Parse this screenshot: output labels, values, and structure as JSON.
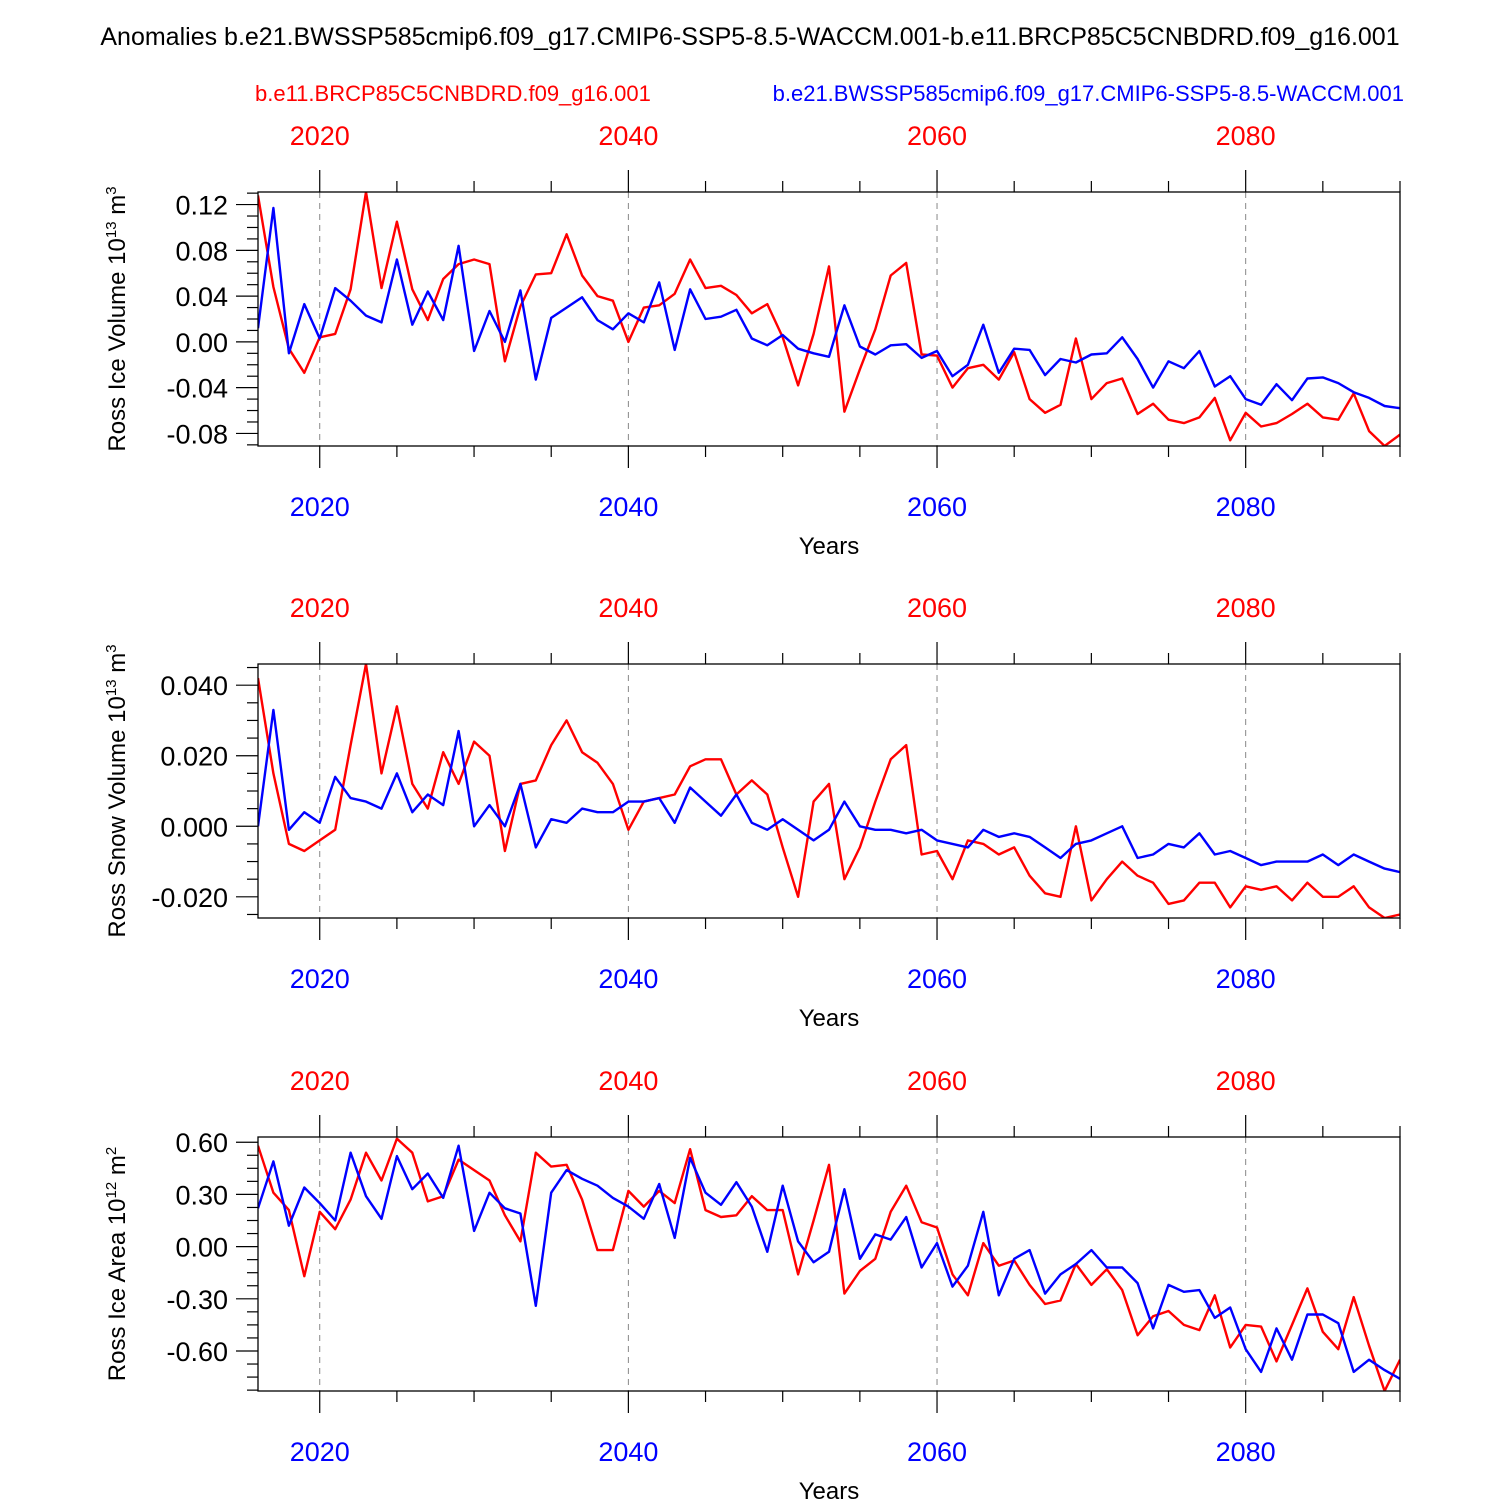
{
  "title": "Anomalies b.e21.BWSSP585cmip6.f09_g17.CMIP6-SSP5-8.5-WACCM.001-b.e11.BRCP85C5CNBDRD.f09_g16.001",
  "legend": {
    "red_label": "b.e11.BRCP85C5CNBDRD.f09_g16.001",
    "blue_label": "b.e21.BWSSP585cmip6.f09_g17.CMIP6-SSP5-8.5-WACCM.001",
    "red_color": "#ff0000",
    "blue_color": "#0000ff"
  },
  "chart_data": [
    {
      "type": "line",
      "ylabel": "Ross Ice Volume",
      "ylabel_power": "13",
      "ylabel_unit": "m",
      "ylabel_unit_power": "3",
      "xlabel": "Years",
      "xlim": [
        2016,
        2090
      ],
      "ylim": [
        -0.091,
        0.131
      ],
      "yticks": [
        -0.08,
        -0.04,
        0.0,
        0.04,
        0.08,
        0.12
      ],
      "ytick_labels": [
        "-0.08",
        "-0.04",
        "0.00",
        "0.04",
        "0.08",
        "0.12"
      ],
      "xticks": [
        2020,
        2040,
        2060,
        2080
      ],
      "xtick_labels": [
        "2020",
        "2040",
        "2060",
        "2080"
      ],
      "x_start": 2016,
      "series": [
        {
          "name": "b.e11.BRCP85C5CNBDRD.f09_g16.001",
          "color": "#ff0000",
          "values": [
            0.128,
            0.048,
            -0.006,
            -0.027,
            0.004,
            0.007,
            0.046,
            0.131,
            0.047,
            0.105,
            0.046,
            0.019,
            0.055,
            0.068,
            0.072,
            0.068,
            -0.017,
            0.031,
            0.059,
            0.06,
            0.094,
            0.058,
            0.04,
            0.036,
            0.0,
            0.03,
            0.032,
            0.042,
            0.072,
            0.047,
            0.049,
            0.041,
            0.025,
            0.033,
            0.004,
            -0.038,
            0.007,
            0.066,
            -0.061,
            -0.024,
            0.011,
            0.058,
            0.069,
            -0.011,
            -0.012,
            -0.04,
            -0.023,
            -0.02,
            -0.033,
            -0.009,
            -0.05,
            -0.062,
            -0.055,
            0.003,
            -0.05,
            -0.036,
            -0.032,
            -0.063,
            -0.054,
            -0.068,
            -0.071,
            -0.066,
            -0.049,
            -0.086,
            -0.062,
            -0.074,
            -0.071,
            -0.063,
            -0.054,
            -0.066,
            -0.068,
            -0.045,
            -0.078,
            -0.091,
            -0.081
          ]
        },
        {
          "name": "b.e21.BWSSP585cmip6.f09_g17.CMIP6-SSP5-8.5-WACCM.001",
          "color": "#0000ff",
          "values": [
            0.012,
            0.117,
            -0.01,
            0.033,
            0.003,
            0.047,
            0.036,
            0.023,
            0.017,
            0.072,
            0.015,
            0.044,
            0.019,
            0.084,
            -0.008,
            0.027,
            0.0,
            0.045,
            -0.033,
            0.021,
            0.03,
            0.039,
            0.019,
            0.011,
            0.025,
            0.017,
            0.052,
            -0.007,
            0.046,
            0.02,
            0.022,
            0.028,
            0.003,
            -0.003,
            0.006,
            -0.006,
            -0.01,
            -0.013,
            0.032,
            -0.004,
            -0.011,
            -0.003,
            -0.002,
            -0.014,
            -0.008,
            -0.03,
            -0.02,
            0.015,
            -0.027,
            -0.006,
            -0.007,
            -0.029,
            -0.015,
            -0.018,
            -0.011,
            -0.01,
            0.004,
            -0.015,
            -0.04,
            -0.017,
            -0.023,
            -0.008,
            -0.039,
            -0.03,
            -0.05,
            -0.055,
            -0.037,
            -0.051,
            -0.032,
            -0.031,
            -0.036,
            -0.044,
            -0.049,
            -0.056,
            -0.058
          ]
        }
      ]
    },
    {
      "type": "line",
      "ylabel": "Ross Snow Volume",
      "ylabel_power": "13",
      "ylabel_unit": "m",
      "ylabel_unit_power": "3",
      "xlabel": "Years",
      "xlim": [
        2016,
        2090
      ],
      "ylim": [
        -0.026,
        0.046
      ],
      "yticks": [
        -0.02,
        0.0,
        0.02,
        0.04
      ],
      "ytick_labels": [
        "-0.020",
        "0.000",
        "0.020",
        "0.040"
      ],
      "xticks": [
        2020,
        2040,
        2060,
        2080
      ],
      "xtick_labels": [
        "2020",
        "2040",
        "2060",
        "2080"
      ],
      "x_start": 2016,
      "series": [
        {
          "name": "b.e11.BRCP85C5CNBDRD.f09_g16.001",
          "color": "#ff0000",
          "values": [
            0.042,
            0.015,
            -0.005,
            -0.007,
            -0.004,
            -0.001,
            0.023,
            0.046,
            0.015,
            0.034,
            0.012,
            0.005,
            0.021,
            0.012,
            0.024,
            0.02,
            -0.007,
            0.012,
            0.013,
            0.023,
            0.03,
            0.021,
            0.018,
            0.012,
            -0.001,
            0.007,
            0.008,
            0.009,
            0.017,
            0.019,
            0.019,
            0.009,
            0.013,
            0.009,
            -0.006,
            -0.02,
            0.007,
            0.012,
            -0.015,
            -0.006,
            0.007,
            0.019,
            0.023,
            -0.008,
            -0.007,
            -0.015,
            -0.004,
            -0.005,
            -0.008,
            -0.006,
            -0.014,
            -0.019,
            -0.02,
            0.0,
            -0.021,
            -0.015,
            -0.01,
            -0.014,
            -0.016,
            -0.022,
            -0.021,
            -0.016,
            -0.016,
            -0.023,
            -0.017,
            -0.018,
            -0.017,
            -0.021,
            -0.016,
            -0.02,
            -0.02,
            -0.017,
            -0.023,
            -0.026,
            -0.025
          ]
        },
        {
          "name": "b.e21.BWSSP585cmip6.f09_g17.CMIP6-SSP5-8.5-WACCM.001",
          "color": "#0000ff",
          "values": [
            0.0,
            0.033,
            -0.001,
            0.004,
            0.001,
            0.014,
            0.008,
            0.007,
            0.005,
            0.015,
            0.004,
            0.009,
            0.006,
            0.027,
            0.0,
            0.006,
            0.0,
            0.012,
            -0.006,
            0.002,
            0.001,
            0.005,
            0.004,
            0.004,
            0.007,
            0.007,
            0.008,
            0.001,
            0.011,
            0.007,
            0.003,
            0.009,
            0.001,
            -0.001,
            0.002,
            -0.001,
            -0.004,
            -0.001,
            0.007,
            0.0,
            -0.001,
            -0.001,
            -0.002,
            -0.001,
            -0.004,
            -0.005,
            -0.006,
            -0.001,
            -0.003,
            -0.002,
            -0.003,
            -0.006,
            -0.009,
            -0.005,
            -0.004,
            -0.002,
            0.0,
            -0.009,
            -0.008,
            -0.005,
            -0.006,
            -0.002,
            -0.008,
            -0.007,
            -0.009,
            -0.011,
            -0.01,
            -0.01,
            -0.01,
            -0.008,
            -0.011,
            -0.008,
            -0.01,
            -0.012,
            -0.013
          ]
        }
      ]
    },
    {
      "type": "line",
      "ylabel": "Ross Ice Area",
      "ylabel_power": "12",
      "ylabel_unit": "m",
      "ylabel_unit_power": "2",
      "xlabel": "Years",
      "xlim": [
        2016,
        2090
      ],
      "ylim": [
        -0.83,
        0.63
      ],
      "yticks": [
        -0.6,
        -0.3,
        0.0,
        0.3,
        0.6
      ],
      "ytick_labels": [
        "-0.60",
        "-0.30",
        "0.00",
        "0.30",
        "0.60"
      ],
      "xticks": [
        2020,
        2040,
        2060,
        2080
      ],
      "xtick_labels": [
        "2020",
        "2040",
        "2060",
        "2080"
      ],
      "x_start": 2016,
      "series": [
        {
          "name": "b.e11.BRCP85C5CNBDRD.f09_g16.001",
          "color": "#ff0000",
          "values": [
            0.58,
            0.31,
            0.21,
            -0.17,
            0.2,
            0.1,
            0.27,
            0.54,
            0.38,
            0.62,
            0.54,
            0.26,
            0.29,
            0.5,
            0.44,
            0.38,
            0.18,
            0.03,
            0.54,
            0.46,
            0.47,
            0.27,
            -0.02,
            -0.02,
            0.32,
            0.23,
            0.32,
            0.25,
            0.56,
            0.21,
            0.17,
            0.18,
            0.29,
            0.21,
            0.21,
            -0.16,
            0.15,
            0.47,
            -0.27,
            -0.14,
            -0.07,
            0.2,
            0.35,
            0.14,
            0.11,
            -0.16,
            -0.28,
            0.02,
            -0.11,
            -0.08,
            -0.22,
            -0.33,
            -0.31,
            -0.1,
            -0.22,
            -0.13,
            -0.25,
            -0.51,
            -0.4,
            -0.37,
            -0.45,
            -0.48,
            -0.28,
            -0.58,
            -0.45,
            -0.46,
            -0.66,
            -0.45,
            -0.24,
            -0.49,
            -0.59,
            -0.29,
            -0.57,
            -0.83,
            -0.65
          ]
        },
        {
          "name": "b.e21.BWSSP585cmip6.f09_g17.CMIP6-SSP5-8.5-WACCM.001",
          "color": "#0000ff",
          "values": [
            0.22,
            0.49,
            0.12,
            0.34,
            0.25,
            0.15,
            0.54,
            0.29,
            0.16,
            0.52,
            0.33,
            0.42,
            0.28,
            0.58,
            0.09,
            0.31,
            0.22,
            0.19,
            -0.34,
            0.31,
            0.44,
            0.39,
            0.35,
            0.28,
            0.23,
            0.16,
            0.36,
            0.05,
            0.51,
            0.31,
            0.24,
            0.37,
            0.23,
            -0.03,
            0.35,
            0.03,
            -0.09,
            -0.03,
            0.33,
            -0.07,
            0.07,
            0.04,
            0.17,
            -0.12,
            0.02,
            -0.23,
            -0.11,
            0.2,
            -0.28,
            -0.07,
            -0.02,
            -0.27,
            -0.16,
            -0.1,
            -0.02,
            -0.12,
            -0.12,
            -0.21,
            -0.47,
            -0.22,
            -0.26,
            -0.25,
            -0.41,
            -0.35,
            -0.59,
            -0.72,
            -0.47,
            -0.65,
            -0.39,
            -0.39,
            -0.44,
            -0.72,
            -0.65,
            -0.71,
            -0.76
          ]
        }
      ]
    }
  ]
}
